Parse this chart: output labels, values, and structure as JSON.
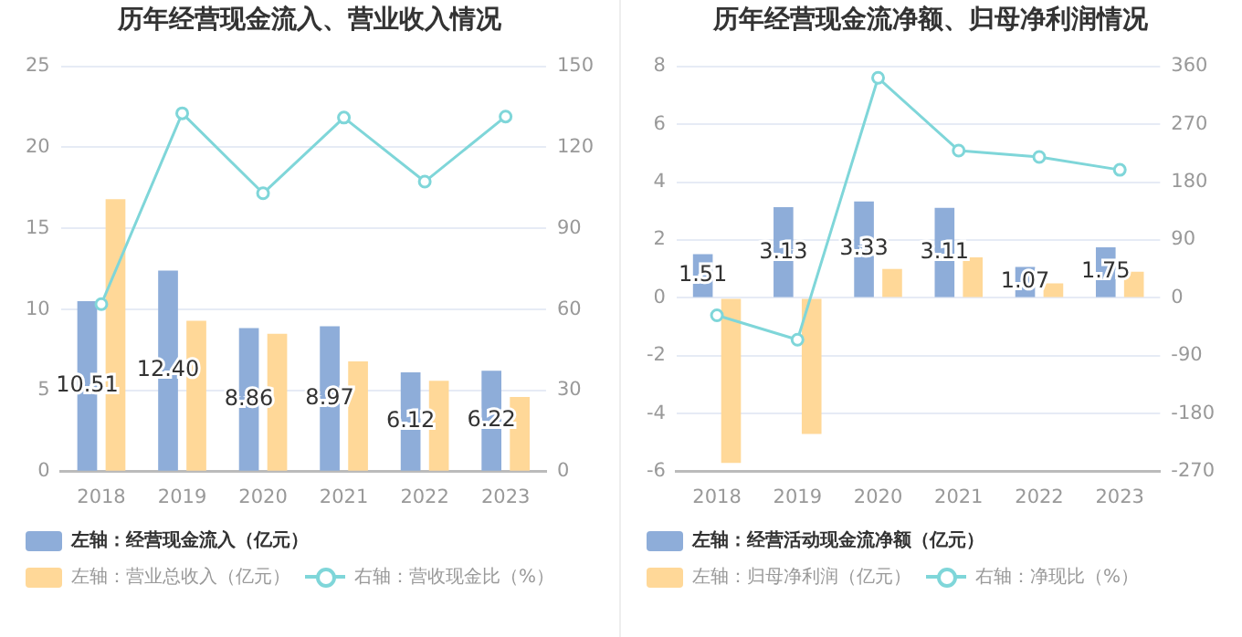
{
  "chart_data": [
    {
      "type": "bar",
      "title": "历年经营现金流入、营业收入情况",
      "categories": [
        "2018",
        "2019",
        "2020",
        "2021",
        "2022",
        "2023"
      ],
      "series": [
        {
          "name": "左轴：经营现金流入（亿元）",
          "color": "#8eadd9",
          "values": [
            10.51,
            12.4,
            8.86,
            8.97,
            6.12,
            6.22
          ],
          "value_labels": [
            "10.51",
            "12.40",
            "8.86",
            "8.97",
            "6.12",
            "6.22"
          ]
        },
        {
          "name": "左轴：营业总收入（亿元）",
          "color": "#ffd898",
          "values": [
            16.8,
            9.3,
            8.5,
            6.8,
            5.6,
            4.6
          ]
        },
        {
          "name": "右轴：营收现金比（%）",
          "type": "line",
          "axis": "y2",
          "color": "#7fd6d9",
          "values": [
            62,
            132.6,
            103,
            131,
            107.3,
            131.4
          ]
        }
      ],
      "ylim": [
        0,
        25
      ],
      "yticks": [
        0,
        5,
        10,
        15,
        20,
        25
      ],
      "y2lim": [
        0,
        150
      ],
      "y2ticks": [
        0,
        30,
        60,
        90,
        120,
        150
      ],
      "grid": "y",
      "legend": "bottom",
      "marker": "circle"
    },
    {
      "type": "bar",
      "title": "历年经营现金流净额、归母净利润情况",
      "categories": [
        "2018",
        "2019",
        "2020",
        "2021",
        "2022",
        "2023"
      ],
      "series": [
        {
          "name": "左轴：经营活动现金流净额（亿元）",
          "color": "#8eadd9",
          "values": [
            1.51,
            3.13,
            3.33,
            3.11,
            1.07,
            1.75
          ],
          "value_labels": [
            "1.51",
            "3.13",
            "3.33",
            "3.11",
            "1.07",
            "1.75"
          ]
        },
        {
          "name": "左轴：归母净利润（亿元）",
          "color": "#ffd898",
          "values": [
            -5.7,
            -4.7,
            1.0,
            1.4,
            0.5,
            0.9
          ]
        },
        {
          "name": "右轴：净现比（%）",
          "type": "line",
          "axis": "y2",
          "color": "#7fd6d9",
          "values": [
            -27,
            -65,
            342,
            229,
            219,
            199
          ]
        }
      ],
      "ylim": [
        -6,
        8
      ],
      "yticks": [
        -6,
        -4,
        -2,
        0,
        2,
        4,
        6,
        8
      ],
      "y2lim": [
        -270,
        360
      ],
      "y2ticks": [
        -270,
        -180,
        -90,
        0,
        90,
        180,
        270,
        360
      ],
      "grid": "y",
      "legend": "bottom",
      "marker": "circle"
    }
  ]
}
